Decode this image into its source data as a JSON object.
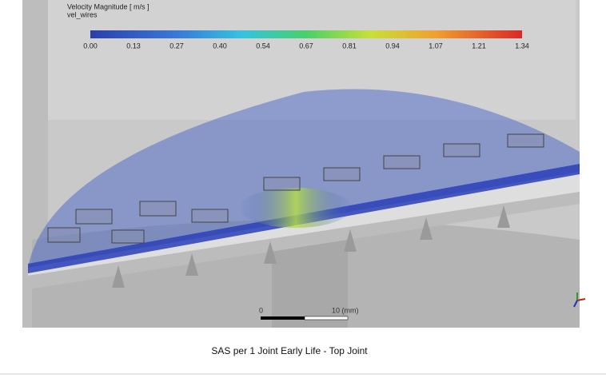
{
  "legend": {
    "title": "Velocity Magnitude [ m/s ]",
    "variable": "vel_wires",
    "ticks": [
      "0.00",
      "0.13",
      "0.27",
      "0.40",
      "0.54",
      "0.67",
      "0.81",
      "0.94",
      "1.07",
      "1.21",
      "1.34"
    ]
  },
  "scale_bar": {
    "start": "0",
    "end": "10 (mm)"
  },
  "caption": "SAS per 1 Joint Early Life - Top Joint"
}
